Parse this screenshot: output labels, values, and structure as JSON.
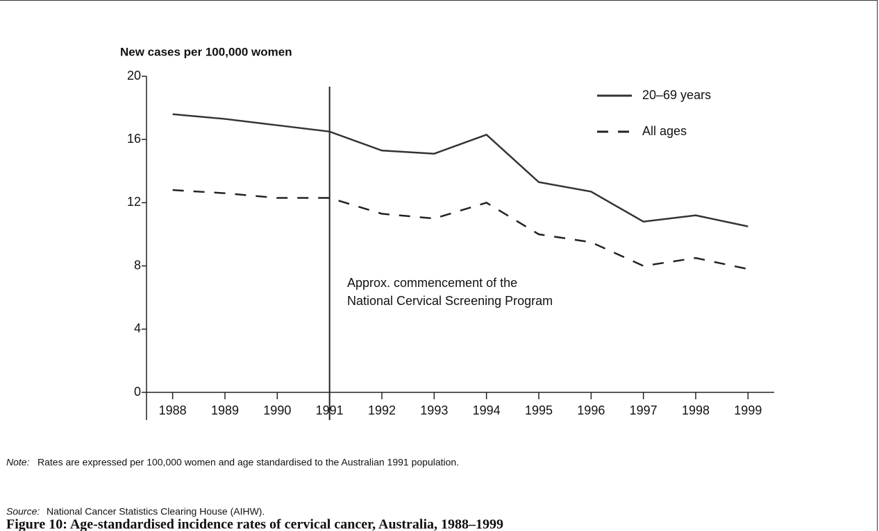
{
  "chart_data": {
    "type": "line",
    "title": "Figure 10: Age-standardised incidence rates of cervical cancer, Australia, 1988–1999",
    "y_label": "New cases per 100,000 women",
    "x": [
      1988,
      1989,
      1990,
      1991,
      1992,
      1993,
      1994,
      1995,
      1996,
      1997,
      1998,
      1999
    ],
    "xlim": [
      1987.5,
      1999.5
    ],
    "xticks": [
      1988,
      1989,
      1990,
      1991,
      1992,
      1993,
      1994,
      1995,
      1996,
      1997,
      1998,
      1999
    ],
    "ylim": [
      0,
      20
    ],
    "yticks": [
      0,
      4,
      8,
      12,
      16,
      20
    ],
    "series": [
      {
        "name": "20–69 years",
        "color": "#333333",
        "style": "solid",
        "values": [
          17.6,
          17.3,
          16.9,
          16.5,
          15.3,
          15.1,
          16.3,
          13.3,
          12.7,
          10.8,
          11.2,
          10.5
        ]
      },
      {
        "name": "All ages",
        "color": "#222222",
        "style": "dashed",
        "values": [
          12.8,
          12.6,
          12.3,
          12.3,
          11.3,
          11.0,
          12.0,
          10.0,
          9.5,
          8.0,
          8.5,
          7.8
        ]
      }
    ],
    "legend": "upper right",
    "vline": 1991,
    "annotation": [
      "Approx. commencement of the",
      "National Cervical Screening Program"
    ],
    "note_label": "Note:",
    "note": "Rates are expressed per 100,000 women and age standardised to the Australian 1991 population.",
    "source_label": "Source:",
    "source": "National Cancer Statistics Clearing House (AIHW)."
  }
}
